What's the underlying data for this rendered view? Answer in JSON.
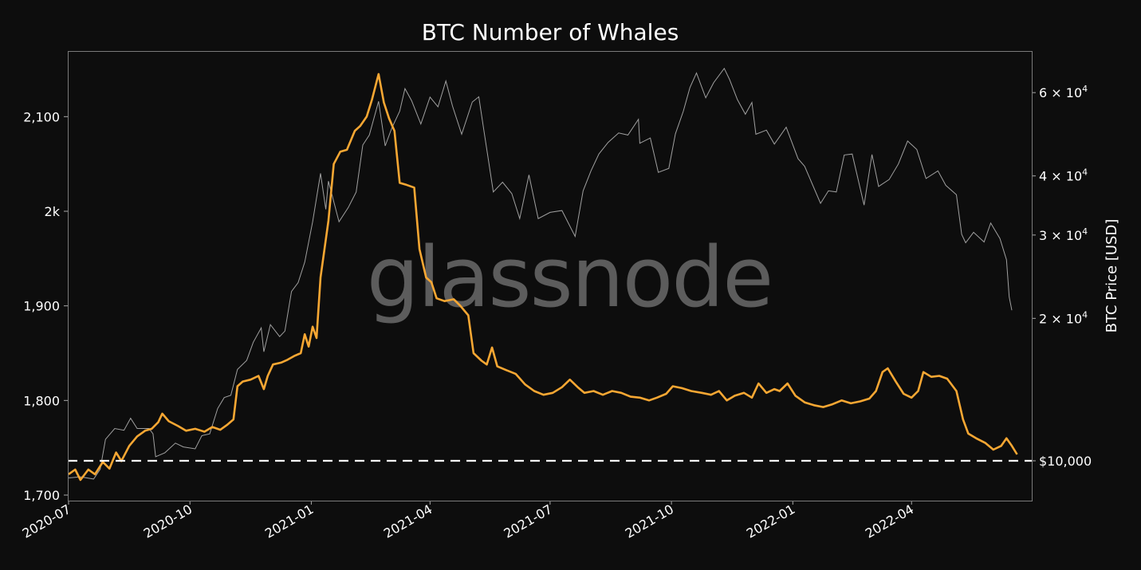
{
  "chart_data": {
    "type": "line",
    "title": "BTC Number of Whales",
    "xlabel": "",
    "ylabel_left": "",
    "ylabel_right": "BTC Price [USD]",
    "x_ticks": [
      "2020-07",
      "2020-10",
      "2021-01",
      "2021-04",
      "2021-07",
      "2021-10",
      "2022-01",
      "2022-04"
    ],
    "y_left_ticks": [
      "1,700",
      "1,800",
      "1,900",
      "2k",
      "2,100"
    ],
    "y_left_range": [
      1695,
      2170
    ],
    "y_right_ticks": [
      "$10,000",
      "2 × 10^4",
      "3 × 10^4",
      "4 × 10^4",
      "6 × 10^4"
    ],
    "y_right_scale": "log",
    "y_right_range": [
      8600,
      72000
    ],
    "reference_line": {
      "label": "$10,000",
      "value": 10000,
      "axis": "right",
      "style": "dashed",
      "color": "#ffffff"
    },
    "watermark": "glassnode",
    "grid": false,
    "legend": null,
    "series": [
      {
        "name": "Number of Whales",
        "axis": "left",
        "color": "#f7a733",
        "points": [
          [
            "2020-07-01",
            1722
          ],
          [
            "2020-07-06",
            1727
          ],
          [
            "2020-07-10",
            1716
          ],
          [
            "2020-07-16",
            1727
          ],
          [
            "2020-07-21",
            1722
          ],
          [
            "2020-07-27",
            1735
          ],
          [
            "2020-08-01",
            1728
          ],
          [
            "2020-08-06",
            1745
          ],
          [
            "2020-08-10",
            1736
          ],
          [
            "2020-08-16",
            1752
          ],
          [
            "2020-08-22",
            1762
          ],
          [
            "2020-08-28",
            1768
          ],
          [
            "2020-09-02",
            1770
          ],
          [
            "2020-09-07",
            1777
          ],
          [
            "2020-09-10",
            1786
          ],
          [
            "2020-09-15",
            1778
          ],
          [
            "2020-09-22",
            1773
          ],
          [
            "2020-09-28",
            1768
          ],
          [
            "2020-10-05",
            1770
          ],
          [
            "2020-10-12",
            1767
          ],
          [
            "2020-10-18",
            1772
          ],
          [
            "2020-10-24",
            1769
          ],
          [
            "2020-10-29",
            1774
          ],
          [
            "2020-11-03",
            1780
          ],
          [
            "2020-11-06",
            1815
          ],
          [
            "2020-11-10",
            1820
          ],
          [
            "2020-11-16",
            1822
          ],
          [
            "2020-11-22",
            1826
          ],
          [
            "2020-11-26",
            1812
          ],
          [
            "2020-11-29",
            1826
          ],
          [
            "2020-12-03",
            1838
          ],
          [
            "2020-12-09",
            1840
          ],
          [
            "2020-12-14",
            1843
          ],
          [
            "2020-12-19",
            1847
          ],
          [
            "2020-12-24",
            1850
          ],
          [
            "2020-12-27",
            1870
          ],
          [
            "2020-12-30",
            1857
          ],
          [
            "2021-01-02",
            1878
          ],
          [
            "2021-01-05",
            1866
          ],
          [
            "2021-01-08",
            1930
          ],
          [
            "2021-01-14",
            1990
          ],
          [
            "2021-01-18",
            2050
          ],
          [
            "2021-01-23",
            2063
          ],
          [
            "2021-01-28",
            2065
          ],
          [
            "2021-02-03",
            2085
          ],
          [
            "2021-02-07",
            2090
          ],
          [
            "2021-02-12",
            2100
          ],
          [
            "2021-02-16",
            2118
          ],
          [
            "2021-02-21",
            2145
          ],
          [
            "2021-02-25",
            2115
          ],
          [
            "2021-03-01",
            2098
          ],
          [
            "2021-03-05",
            2085
          ],
          [
            "2021-03-09",
            2030
          ],
          [
            "2021-03-14",
            2028
          ],
          [
            "2021-03-20",
            2025
          ],
          [
            "2021-03-24",
            1960
          ],
          [
            "2021-03-29",
            1930
          ],
          [
            "2021-04-02",
            1925
          ],
          [
            "2021-04-06",
            1908
          ],
          [
            "2021-04-12",
            1905
          ],
          [
            "2021-04-19",
            1907
          ],
          [
            "2021-04-24",
            1900
          ],
          [
            "2021-04-30",
            1890
          ],
          [
            "2021-05-04",
            1850
          ],
          [
            "2021-05-10",
            1842
          ],
          [
            "2021-05-14",
            1838
          ],
          [
            "2021-05-18",
            1856
          ],
          [
            "2021-05-22",
            1836
          ],
          [
            "2021-05-29",
            1832
          ],
          [
            "2021-06-05",
            1828
          ],
          [
            "2021-06-12",
            1817
          ],
          [
            "2021-06-19",
            1810
          ],
          [
            "2021-06-26",
            1806
          ],
          [
            "2021-07-03",
            1808
          ],
          [
            "2021-07-10",
            1814
          ],
          [
            "2021-07-16",
            1822
          ],
          [
            "2021-07-22",
            1814
          ],
          [
            "2021-07-27",
            1808
          ],
          [
            "2021-08-03",
            1810
          ],
          [
            "2021-08-10",
            1806
          ],
          [
            "2021-08-17",
            1810
          ],
          [
            "2021-08-24",
            1808
          ],
          [
            "2021-08-31",
            1804
          ],
          [
            "2021-09-07",
            1803
          ],
          [
            "2021-09-14",
            1800
          ],
          [
            "2021-09-20",
            1803
          ],
          [
            "2021-09-27",
            1807
          ],
          [
            "2021-10-02",
            1815
          ],
          [
            "2021-10-09",
            1813
          ],
          [
            "2021-10-16",
            1810
          ],
          [
            "2021-10-24",
            1808
          ],
          [
            "2021-10-31",
            1806
          ],
          [
            "2021-11-06",
            1810
          ],
          [
            "2021-11-12",
            1800
          ],
          [
            "2021-11-18",
            1805
          ],
          [
            "2021-11-25",
            1808
          ],
          [
            "2021-12-01",
            1803
          ],
          [
            "2021-12-06",
            1818
          ],
          [
            "2021-12-12",
            1808
          ],
          [
            "2021-12-18",
            1812
          ],
          [
            "2021-12-22",
            1810
          ],
          [
            "2021-12-28",
            1818
          ],
          [
            "2022-01-03",
            1805
          ],
          [
            "2022-01-10",
            1798
          ],
          [
            "2022-01-17",
            1795
          ],
          [
            "2022-01-24",
            1793
          ],
          [
            "2022-01-31",
            1796
          ],
          [
            "2022-02-07",
            1800
          ],
          [
            "2022-02-14",
            1797
          ],
          [
            "2022-02-21",
            1799
          ],
          [
            "2022-02-28",
            1802
          ],
          [
            "2022-03-05",
            1810
          ],
          [
            "2022-03-10",
            1830
          ],
          [
            "2022-03-14",
            1834
          ],
          [
            "2022-03-20",
            1820
          ],
          [
            "2022-03-26",
            1807
          ],
          [
            "2022-04-01",
            1803
          ],
          [
            "2022-04-06",
            1810
          ],
          [
            "2022-04-10",
            1830
          ],
          [
            "2022-04-16",
            1825
          ],
          [
            "2022-04-22",
            1826
          ],
          [
            "2022-04-28",
            1823
          ],
          [
            "2022-05-05",
            1810
          ],
          [
            "2022-05-10",
            1780
          ],
          [
            "2022-05-14",
            1765
          ],
          [
            "2022-05-20",
            1760
          ],
          [
            "2022-05-27",
            1755
          ],
          [
            "2022-06-02",
            1748
          ],
          [
            "2022-06-08",
            1752
          ],
          [
            "2022-06-12",
            1760
          ],
          [
            "2022-06-16",
            1752
          ],
          [
            "2022-06-20",
            1743
          ]
        ]
      },
      {
        "name": "BTC Price [USD]",
        "axis": "right",
        "color": "#a0a0a0",
        "points": [
          [
            "2020-07-01",
            9200
          ],
          [
            "2020-07-10",
            9250
          ],
          [
            "2020-07-20",
            9150
          ],
          [
            "2020-07-25",
            9600
          ],
          [
            "2020-07-29",
            11100
          ],
          [
            "2020-08-05",
            11700
          ],
          [
            "2020-08-12",
            11600
          ],
          [
            "2020-08-17",
            12300
          ],
          [
            "2020-08-22",
            11700
          ],
          [
            "2020-08-31",
            11700
          ],
          [
            "2020-09-03",
            11400
          ],
          [
            "2020-09-05",
            10200
          ],
          [
            "2020-09-12",
            10400
          ],
          [
            "2020-09-20",
            10900
          ],
          [
            "2020-09-26",
            10700
          ],
          [
            "2020-10-05",
            10600
          ],
          [
            "2020-10-10",
            11300
          ],
          [
            "2020-10-16",
            11400
          ],
          [
            "2020-10-22",
            12900
          ],
          [
            "2020-10-27",
            13600
          ],
          [
            "2020-11-01",
            13750
          ],
          [
            "2020-11-06",
            15600
          ],
          [
            "2020-11-13",
            16300
          ],
          [
            "2020-11-18",
            17800
          ],
          [
            "2020-11-24",
            19100
          ],
          [
            "2020-11-26",
            17000
          ],
          [
            "2020-12-01",
            19400
          ],
          [
            "2020-12-08",
            18300
          ],
          [
            "2020-12-12",
            18800
          ],
          [
            "2020-12-17",
            22800
          ],
          [
            "2020-12-22",
            23800
          ],
          [
            "2020-12-27",
            26300
          ],
          [
            "2021-01-02",
            32000
          ],
          [
            "2021-01-08",
            40500
          ],
          [
            "2021-01-12",
            34000
          ],
          [
            "2021-01-14",
            39000
          ],
          [
            "2021-01-22",
            32000
          ],
          [
            "2021-01-29",
            34300
          ],
          [
            "2021-02-04",
            37000
          ],
          [
            "2021-02-09",
            46500
          ],
          [
            "2021-02-14",
            48800
          ],
          [
            "2021-02-21",
            57500
          ],
          [
            "2021-02-26",
            46300
          ],
          [
            "2021-03-03",
            50500
          ],
          [
            "2021-03-09",
            54800
          ],
          [
            "2021-03-13",
            61200
          ],
          [
            "2021-03-18",
            57700
          ],
          [
            "2021-03-25",
            51500
          ],
          [
            "2021-04-01",
            58700
          ],
          [
            "2021-04-07",
            56000
          ],
          [
            "2021-04-13",
            63500
          ],
          [
            "2021-04-18",
            56200
          ],
          [
            "2021-04-25",
            49000
          ],
          [
            "2021-05-03",
            57300
          ],
          [
            "2021-05-08",
            58800
          ],
          [
            "2021-05-12",
            49500
          ],
          [
            "2021-05-19",
            37000
          ],
          [
            "2021-05-26",
            38800
          ],
          [
            "2021-06-02",
            36700
          ],
          [
            "2021-06-08",
            32500
          ],
          [
            "2021-06-15",
            40200
          ],
          [
            "2021-06-22",
            32500
          ],
          [
            "2021-07-01",
            33500
          ],
          [
            "2021-07-10",
            33800
          ],
          [
            "2021-07-20",
            29800
          ],
          [
            "2021-07-26",
            37200
          ],
          [
            "2021-08-01",
            41000
          ],
          [
            "2021-08-07",
            44500
          ],
          [
            "2021-08-14",
            47100
          ],
          [
            "2021-08-22",
            49300
          ],
          [
            "2021-08-29",
            48800
          ],
          [
            "2021-09-06",
            52700
          ],
          [
            "2021-09-07",
            46900
          ],
          [
            "2021-09-15",
            48100
          ],
          [
            "2021-09-21",
            40700
          ],
          [
            "2021-09-29",
            41500
          ],
          [
            "2021-10-04",
            49100
          ],
          [
            "2021-10-10",
            54800
          ],
          [
            "2021-10-15",
            61500
          ],
          [
            "2021-10-20",
            66000
          ],
          [
            "2021-10-27",
            58500
          ],
          [
            "2021-11-02",
            63000
          ],
          [
            "2021-11-10",
            67500
          ],
          [
            "2021-11-14",
            64000
          ],
          [
            "2021-11-20",
            58000
          ],
          [
            "2021-11-26",
            54000
          ],
          [
            "2021-12-01",
            57200
          ],
          [
            "2021-12-04",
            49000
          ],
          [
            "2021-12-12",
            50000
          ],
          [
            "2021-12-18",
            46700
          ],
          [
            "2021-12-27",
            50700
          ],
          [
            "2022-01-05",
            43500
          ],
          [
            "2022-01-10",
            41900
          ],
          [
            "2022-01-22",
            35000
          ],
          [
            "2022-01-28",
            37200
          ],
          [
            "2022-02-03",
            37000
          ],
          [
            "2022-02-09",
            44300
          ],
          [
            "2022-02-15",
            44500
          ],
          [
            "2022-02-24",
            34700
          ],
          [
            "2022-03-02",
            44400
          ],
          [
            "2022-03-07",
            38000
          ],
          [
            "2022-03-15",
            39300
          ],
          [
            "2022-03-22",
            42400
          ],
          [
            "2022-03-29",
            47400
          ],
          [
            "2022-04-05",
            45500
          ],
          [
            "2022-04-12",
            39500
          ],
          [
            "2022-04-21",
            41000
          ],
          [
            "2022-04-27",
            38200
          ],
          [
            "2022-05-05",
            36500
          ],
          [
            "2022-05-09",
            30100
          ],
          [
            "2022-05-12",
            28900
          ],
          [
            "2022-05-18",
            30400
          ],
          [
            "2022-05-26",
            29000
          ],
          [
            "2022-05-31",
            31800
          ],
          [
            "2022-06-07",
            29500
          ],
          [
            "2022-06-12",
            26600
          ],
          [
            "2022-06-14",
            22200
          ],
          [
            "2022-06-16",
            20800
          ]
        ]
      }
    ]
  }
}
